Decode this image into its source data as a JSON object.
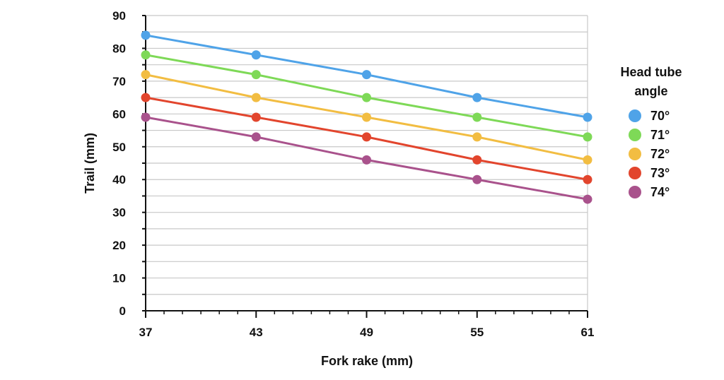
{
  "chart_data": {
    "type": "line",
    "title": "",
    "xlabel": "Fork rake (mm)",
    "ylabel": "Trail (mm)",
    "x": [
      37,
      43,
      49,
      55,
      61
    ],
    "x_tick_labels": [
      "37",
      "43",
      "49",
      "55",
      "61"
    ],
    "y_tick_labels": [
      "0",
      "10",
      "20",
      "30",
      "40",
      "50",
      "60",
      "70",
      "80",
      "90"
    ],
    "ylim": [
      0,
      90
    ],
    "xlim": [
      37,
      61
    ],
    "grid": true,
    "legend": {
      "title_lines": [
        "Head tube",
        "angle"
      ],
      "placement": "right"
    },
    "series": [
      {
        "name": "70°",
        "color": "#4fa3e8",
        "values": [
          84,
          78,
          72,
          65,
          59
        ]
      },
      {
        "name": "71°",
        "color": "#7ed957",
        "values": [
          78,
          72,
          65,
          59,
          53
        ]
      },
      {
        "name": "72°",
        "color": "#f2bd42",
        "values": [
          72,
          65,
          59,
          53,
          46
        ]
      },
      {
        "name": "73°",
        "color": "#e2452d",
        "values": [
          65,
          59,
          53,
          46,
          40
        ]
      },
      {
        "name": "74°",
        "color": "#a9528c",
        "values": [
          59,
          53,
          46,
          40,
          34
        ]
      }
    ]
  }
}
